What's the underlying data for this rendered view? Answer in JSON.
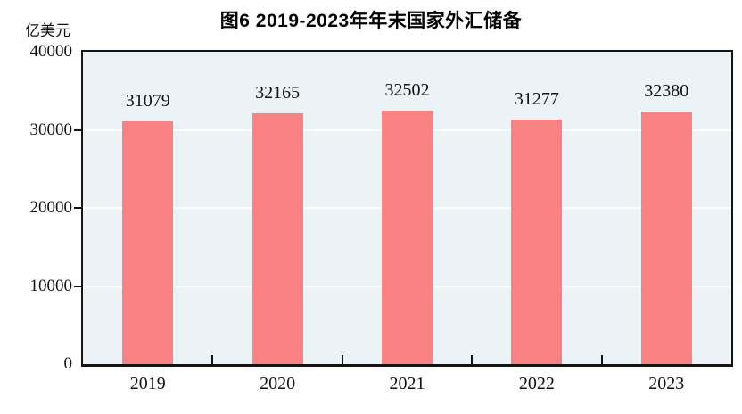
{
  "figure": {
    "title": "图6  2019-2023年年末国家外汇储备",
    "unit_label": "亿美元"
  },
  "chart_data": {
    "type": "bar",
    "title": "图6  2019-2023年年末国家外汇储备",
    "categories": [
      "2019",
      "2020",
      "2021",
      "2022",
      "2023"
    ],
    "values": [
      31079,
      32165,
      32502,
      31277,
      32380
    ],
    "value_labels_shown": true,
    "xlabel": "",
    "ylabel": "亿美元",
    "ylim": [
      0,
      40000
    ],
    "yticks": [
      0,
      10000,
      20000,
      30000,
      40000
    ],
    "grid": "horizontal",
    "legend": "none",
    "colors": {
      "bar": "#FA8181",
      "plot_background": "#ECF3F6",
      "gridline": "#FFFFFF",
      "axis": "#141414",
      "text": "#111111"
    }
  }
}
